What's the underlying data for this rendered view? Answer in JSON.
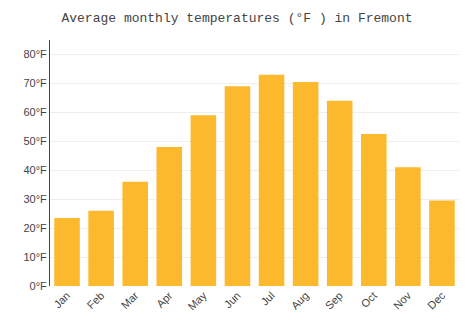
{
  "chart_data": {
    "type": "bar",
    "title": "Average monthly temperatures (°F ) in Fremont",
    "categories": [
      "Jan",
      "Feb",
      "Mar",
      "Apr",
      "May",
      "Jun",
      "Jul",
      "Aug",
      "Sep",
      "Oct",
      "Nov",
      "Dec"
    ],
    "values": [
      23.5,
      26.0,
      36.0,
      48.0,
      59.0,
      69.0,
      73.0,
      70.5,
      64.0,
      52.5,
      41.0,
      29.5
    ],
    "color": "#FDB92E",
    "ylim": [
      0,
      85
    ],
    "yticks": [
      {
        "value": 0,
        "label": "0°F"
      },
      {
        "value": 10,
        "label": "10°F"
      },
      {
        "value": 20,
        "label": "20°F"
      },
      {
        "value": 30,
        "label": "30°F"
      },
      {
        "value": 40,
        "label": "40°F"
      },
      {
        "value": 50,
        "label": "50°F"
      },
      {
        "value": 60,
        "label": "60°F"
      },
      {
        "value": 70,
        "label": "70°F"
      },
      {
        "value": 80,
        "label": "80°F"
      }
    ],
    "grid": true
  }
}
